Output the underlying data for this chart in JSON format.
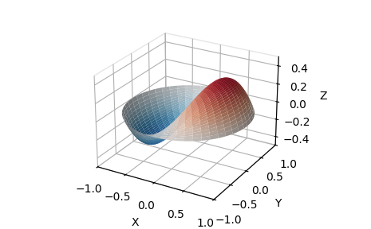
{
  "xlabel": "X",
  "ylabel": "Y",
  "zlabel": "Z",
  "xlim": [
    -1.0,
    1.0
  ],
  "ylim": [
    -1.0,
    1.0
  ],
  "zlim": [
    -0.5,
    0.5
  ],
  "zticks": [
    -0.4,
    -0.2,
    0.0,
    0.2,
    0.4
  ],
  "xticks": [
    -1.0,
    -0.5,
    0.0,
    0.5,
    1.0
  ],
  "yticks": [
    -1.0,
    -0.5,
    0.0,
    0.5,
    1.0
  ],
  "elev": 25,
  "azim": -60,
  "nr": 50,
  "ntheta": 200,
  "colormap": "RdBu_r",
  "vmin": -0.5,
  "vmax": 0.5,
  "figsize": [
    4.65,
    2.88
  ],
  "dpi": 100
}
